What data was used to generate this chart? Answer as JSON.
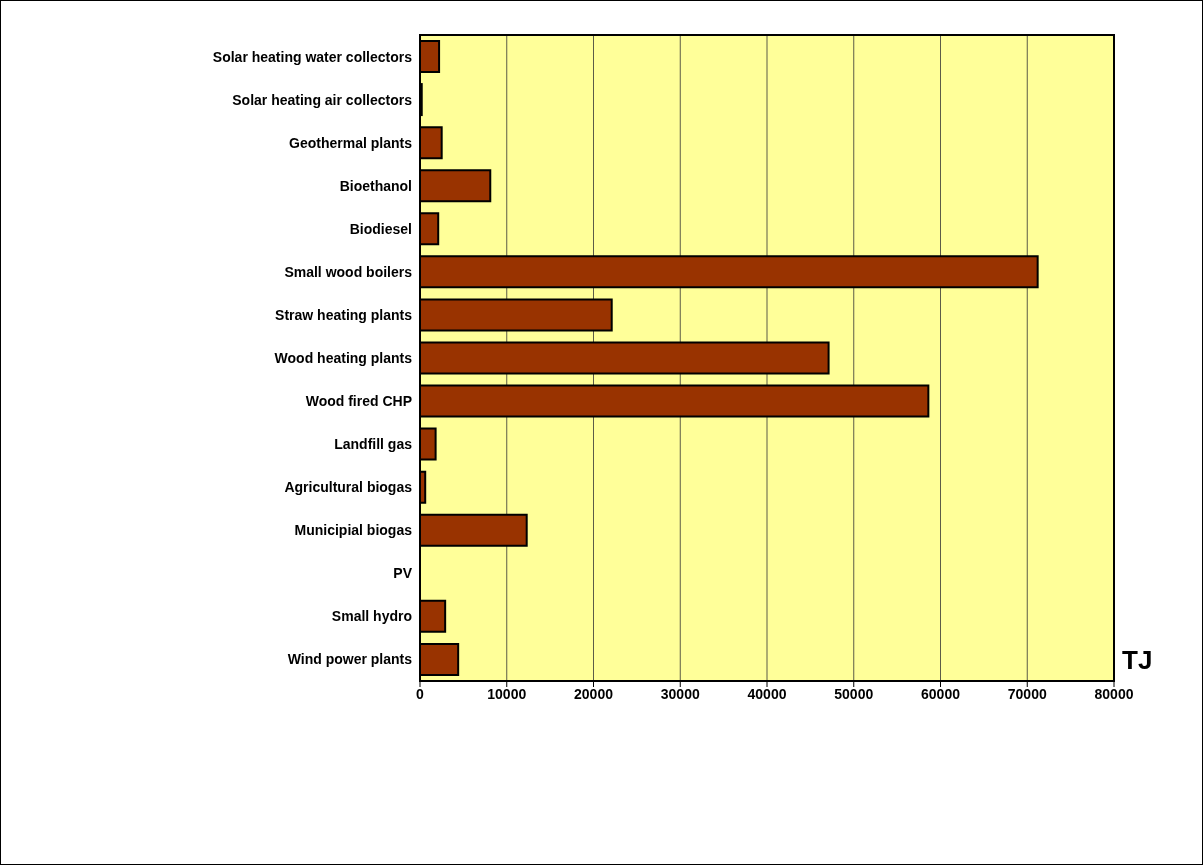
{
  "chart_data": {
    "type": "bar",
    "orientation": "horizontal",
    "xlabel": "TJ",
    "categories": [
      "Solar  heating water collectors",
      "Solar heating air collectors",
      "Geothermal plants",
      "Bioethanol ",
      "Biodiesel",
      "Small wood boilers ",
      "Straw heating plants",
      "Wood heating plants ",
      "Wood fired CHP",
      "Landfill gas",
      "Agricultural biogas",
      "Municipial biogas",
      "PV",
      "Small hydro",
      "Wind power plants"
    ],
    "values": [
      2200,
      200,
      2500,
      8100,
      2100,
      71200,
      22100,
      47100,
      58600,
      1800,
      600,
      12300,
      0,
      2900,
      4400
    ],
    "color": "#993300",
    "xlim": [
      0,
      80000
    ],
    "xticks": [
      0,
      10000,
      20000,
      30000,
      40000,
      50000,
      60000,
      70000,
      80000
    ],
    "grid": "x"
  }
}
